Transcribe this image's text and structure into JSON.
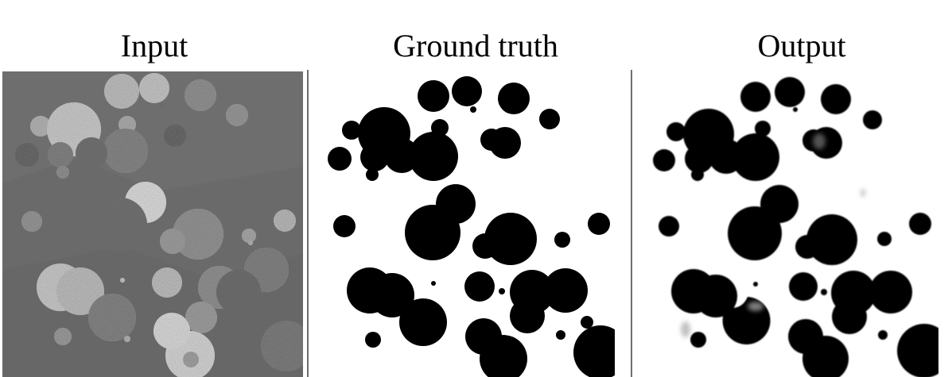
{
  "titles": {
    "input": "Input",
    "ground_truth": "Ground truth",
    "output": "Output"
  },
  "colors": {
    "input_background": "#6a6a6a",
    "mask_foreground": "#000000",
    "mask_background": "#ffffff",
    "divider": "#6f6f6f"
  }
}
